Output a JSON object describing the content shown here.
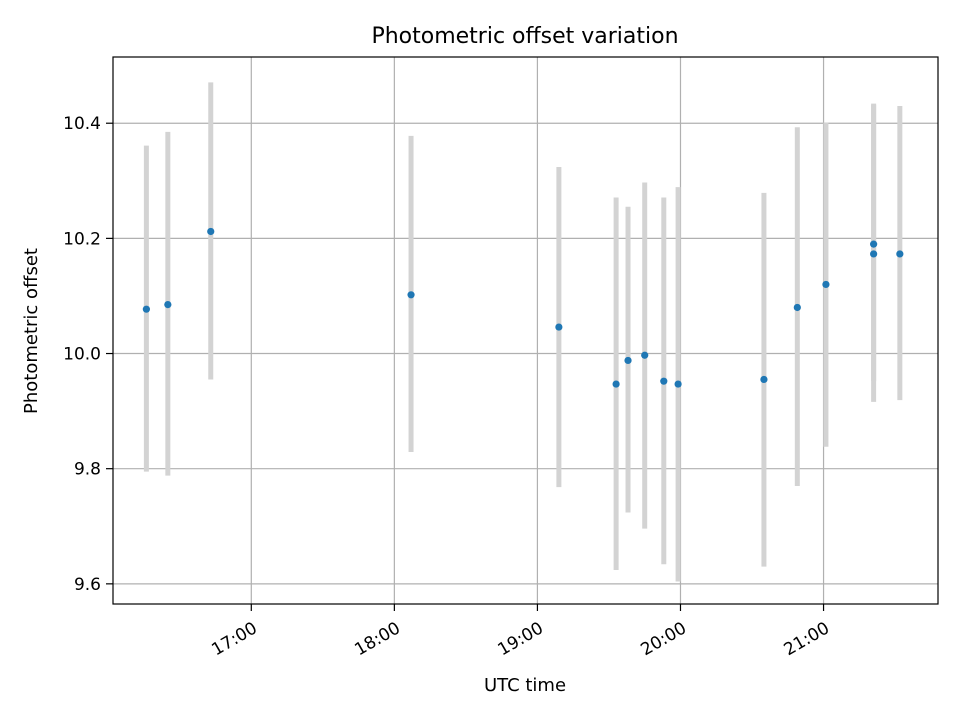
{
  "chart_data": {
    "type": "scatter",
    "title": "Photometric offset variation",
    "xlabel": "UTC time",
    "ylabel": "Photometric offset",
    "x_ticks": [
      "17:00",
      "18:00",
      "19:00",
      "20:00",
      "21:00"
    ],
    "y_ticks": [
      "9.6",
      "9.8",
      "10.0",
      "10.2",
      "10.4"
    ],
    "xlim": [
      "16:02",
      "21:48"
    ],
    "ylim": [
      9.565,
      10.515
    ],
    "grid": true,
    "colors": {
      "marker": "#1f77b4",
      "errorbar": "#d3d3d3",
      "grid": "#b0b0b0"
    },
    "points": [
      {
        "x": "16:16",
        "y": 10.077,
        "low": 9.795,
        "high": 10.361
      },
      {
        "x": "16:25",
        "y": 10.085,
        "low": 9.788,
        "high": 10.385
      },
      {
        "x": "16:43",
        "y": 10.212,
        "low": 9.955,
        "high": 10.471
      },
      {
        "x": "18:07",
        "y": 10.102,
        "low": 9.829,
        "high": 10.378
      },
      {
        "x": "19:09",
        "y": 10.046,
        "low": 9.768,
        "high": 10.324
      },
      {
        "x": "19:33",
        "y": 9.947,
        "low": 9.624,
        "high": 10.271
      },
      {
        "x": "19:38",
        "y": 9.988,
        "low": 9.724,
        "high": 10.255
      },
      {
        "x": "19:45",
        "y": 9.997,
        "low": 9.696,
        "high": 10.297
      },
      {
        "x": "19:53",
        "y": 9.952,
        "low": 9.634,
        "high": 10.271
      },
      {
        "x": "19:59",
        "y": 9.947,
        "low": 9.604,
        "high": 10.289
      },
      {
        "x": "20:35",
        "y": 9.955,
        "low": 9.63,
        "high": 10.279
      },
      {
        "x": "20:49",
        "y": 10.08,
        "low": 9.77,
        "high": 10.393
      },
      {
        "x": "21:01",
        "y": 10.12,
        "low": 9.838,
        "high": 10.401
      },
      {
        "x": "21:21",
        "y": 10.19,
        "low": 9.952,
        "high": 10.434
      },
      {
        "x": "21:21",
        "y": 10.173,
        "low": 9.916,
        "high": 10.432
      },
      {
        "x": "21:32",
        "y": 10.173,
        "low": 9.919,
        "high": 10.43
      }
    ]
  }
}
